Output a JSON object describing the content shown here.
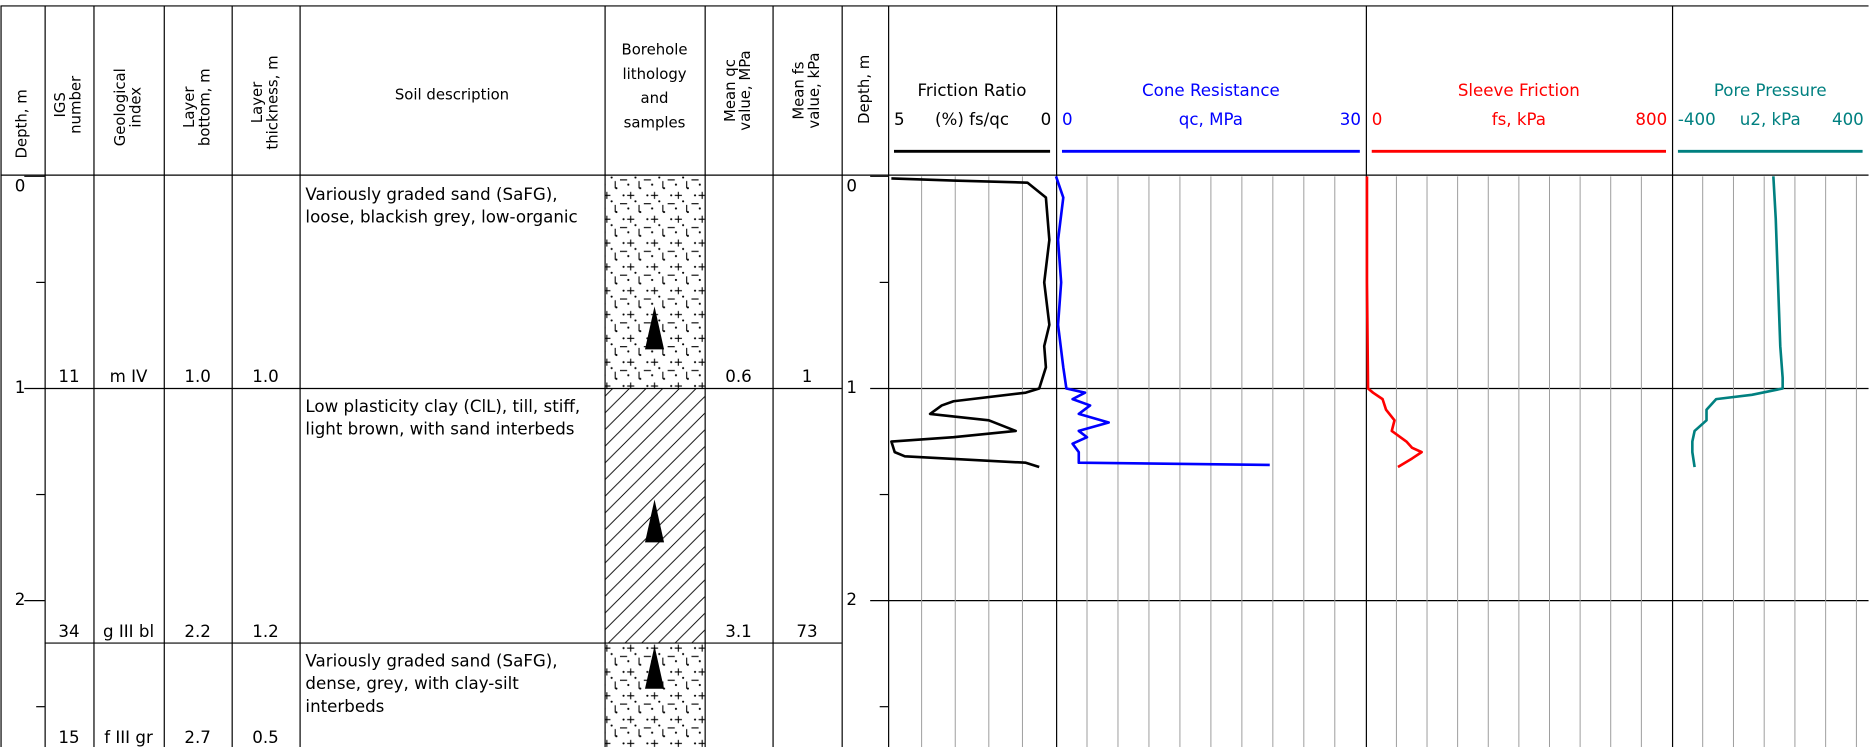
{
  "header": {
    "columns": [
      {
        "lines": [
          "Depth, m"
        ]
      },
      {
        "lines": [
          "IGS",
          "number"
        ]
      },
      {
        "lines": [
          "Geological",
          "index"
        ]
      },
      {
        "lines": [
          "Layer",
          "bottom, m"
        ]
      },
      {
        "lines": [
          "Layer",
          "thickness, m"
        ]
      },
      {
        "lines": [
          "Soil description"
        ]
      },
      {
        "lines": [
          "Borehole",
          "lithology",
          "and",
          "samples"
        ]
      },
      {
        "lines": [
          "Mean qc",
          "value, MPa"
        ]
      },
      {
        "lines": [
          "Mean fs",
          "value, kPa"
        ]
      },
      {
        "lines": [
          "Depth, m"
        ]
      }
    ]
  },
  "depth_axis": {
    "ylim": [
      0,
      2.69
    ],
    "ticks": [
      0,
      1,
      2
    ],
    "minor_ticks": [
      0.5,
      1.5,
      2.5
    ]
  },
  "layers": [
    {
      "igs": "11",
      "index": "m IV",
      "bottom": "1.0",
      "thickness": "1.0",
      "description": [
        "Variously graded sand (SaFG),",
        "loose, blackish grey, low-organic"
      ],
      "lithology": "sand",
      "mean_qc": "0.6",
      "mean_fs": "1"
    },
    {
      "igs": "34",
      "index": "g III bl",
      "bottom": "2.2",
      "thickness": "1.2",
      "description": [
        "Low plasticity clay (ClL), till, stiff,",
        "light brown, with sand interbeds"
      ],
      "lithology": "clay",
      "mean_qc": "3.1",
      "mean_fs": "73"
    },
    {
      "igs": "15",
      "index": "f III gr",
      "bottom": "2.7",
      "thickness": "0.5",
      "description": [
        "Variously graded sand (SaFG),",
        "dense, grey, with clay-silt",
        "interbeds"
      ],
      "lithology": "sand"
    }
  ],
  "samples": [
    0.72,
    1.63,
    2.32
  ],
  "cpt": [
    {
      "title": "Friction Ratio",
      "axis_label": "(%) fs/qc",
      "color": "#000000",
      "xlim": [
        5,
        0
      ],
      "grid": [
        4,
        3,
        2,
        1
      ],
      "depth": [
        0.01,
        0.02,
        0.03,
        0.1,
        0.3,
        0.5,
        0.7,
        0.8,
        0.9,
        1.0,
        1.02,
        1.06,
        1.08,
        1.12,
        1.15,
        1.2,
        1.23,
        1.25,
        1.3,
        1.32,
        1.35,
        1.37
      ],
      "values": [
        4.9,
        3.05,
        0.85,
        0.3,
        0.2,
        0.35,
        0.2,
        0.35,
        0.3,
        0.5,
        0.9,
        3.05,
        3.4,
        3.75,
        2.0,
        1.2,
        3.05,
        4.9,
        4.8,
        4.5,
        0.9,
        0.5
      ]
    },
    {
      "title": "Cone Resistance",
      "axis_label": "qc, MPa",
      "color": "#0000ff",
      "xlim": [
        0,
        30
      ],
      "grid": [
        3,
        6,
        9,
        12,
        15,
        18,
        21,
        24,
        27
      ],
      "depth": [
        0.0,
        0.1,
        0.3,
        0.5,
        0.7,
        0.9,
        1.0,
        1.02,
        1.05,
        1.08,
        1.12,
        1.16,
        1.2,
        1.23,
        1.26,
        1.3,
        1.35,
        1.36
      ],
      "values": [
        0.0,
        0.7,
        0.2,
        0.5,
        0.2,
        0.7,
        1.0,
        2.8,
        1.6,
        3.3,
        2.2,
        5.1,
        2.2,
        3.0,
        1.6,
        2.2,
        2.2,
        20.7
      ]
    },
    {
      "title": "Sleeve Friction",
      "axis_label": "fs, kPa",
      "color": "#ff0000",
      "xlim": [
        0,
        800
      ],
      "grid": [
        80,
        160,
        240,
        320,
        400,
        480,
        560,
        640,
        720
      ],
      "depth": [
        0.0,
        0.5,
        1.0,
        1.02,
        1.05,
        1.1,
        1.15,
        1.2,
        1.25,
        1.28,
        1.3,
        1.33,
        1.37
      ],
      "values": [
        3,
        3,
        6,
        19,
        44,
        53,
        75,
        68,
        106,
        121,
        146,
        121,
        84
      ]
    },
    {
      "title": "Pore Pressure",
      "axis_label": "u2, kPa",
      "color": "#008080",
      "xlim": [
        -400,
        400
      ],
      "grid": [
        -320,
        -240,
        -160,
        -80,
        0,
        80,
        160,
        240,
        320
      ],
      "depth": [
        0.0,
        0.2,
        0.5,
        0.8,
        0.95,
        1.0,
        1.03,
        1.05,
        1.1,
        1.15,
        1.2,
        1.25,
        1.3,
        1.37
      ],
      "values": [
        -136,
        -130,
        -124,
        -118,
        -112,
        -112,
        -192,
        -285,
        -310,
        -310,
        -341,
        -347,
        -347,
        -341
      ]
    }
  ]
}
